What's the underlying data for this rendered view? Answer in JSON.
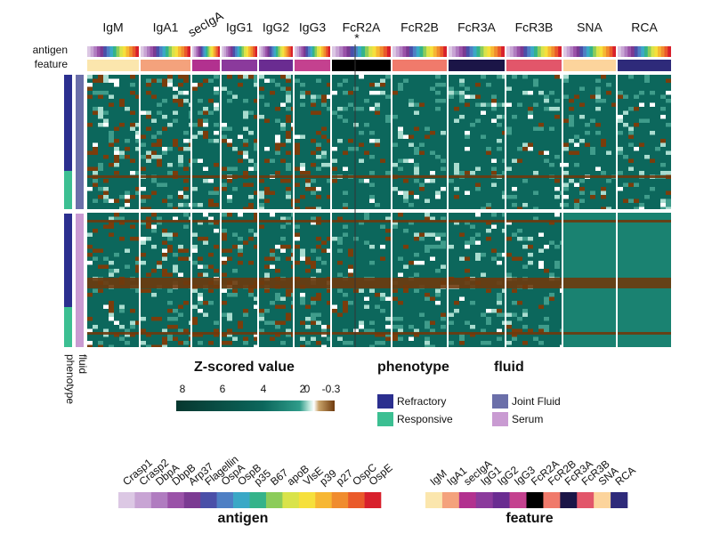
{
  "columns": [
    "IgM",
    "IgA1",
    "secIgA",
    "IgG1",
    "IgG2",
    "IgG3",
    "FcR2A",
    "FcR2B",
    "FcR3A",
    "FcR3B",
    "SNA",
    "RCA"
  ],
  "column_note": "*",
  "row_labels": [
    "antigen",
    "feature"
  ],
  "side_labels": [
    "fluid",
    "phenotype"
  ],
  "colorbar": {
    "title": "Z-scored value",
    "ticks": [
      8,
      6,
      4,
      2,
      0,
      -0.3
    ]
  },
  "phenotype_legend": {
    "title": "phenotype",
    "items": [
      {
        "label": "Refractory",
        "color": "#2b2f8f"
      },
      {
        "label": "Responsive",
        "color": "#3cbf92"
      }
    ]
  },
  "fluid_legend": {
    "title": "fluid",
    "items": [
      {
        "label": "Joint Fluid",
        "color": "#6b6fa9"
      },
      {
        "label": "Serum",
        "color": "#c99bd2"
      }
    ]
  },
  "antigen_legend": {
    "title": "antigen",
    "items": [
      {
        "label": "Crasp1",
        "color": "#dcc8e4"
      },
      {
        "label": "Crasp2",
        "color": "#c8a4d4"
      },
      {
        "label": "DbpA",
        "color": "#b07cc0"
      },
      {
        "label": "DbpB",
        "color": "#9a52a8"
      },
      {
        "label": "Arp37",
        "color": "#7b3a92"
      },
      {
        "label": "Flagellin",
        "color": "#4a4fa8"
      },
      {
        "label": "OspA",
        "color": "#4e7fc4"
      },
      {
        "label": "OspB",
        "color": "#3aa8c6"
      },
      {
        "label": "p35",
        "color": "#34b38a"
      },
      {
        "label": "B67",
        "color": "#8ccc5a"
      },
      {
        "label": "apoB",
        "color": "#d9e34a"
      },
      {
        "label": "VlsE",
        "color": "#f6e03c"
      },
      {
        "label": "p39",
        "color": "#f7b733"
      },
      {
        "label": "p27",
        "color": "#f08c2e"
      },
      {
        "label": "OspC",
        "color": "#ea5a2a"
      },
      {
        "label": "OspE",
        "color": "#d8202c"
      }
    ]
  },
  "feature_legend": {
    "title": "feature",
    "items": [
      {
        "label": "IgM",
        "color": "#fbe6ad"
      },
      {
        "label": "IgA1",
        "color": "#f4a27c"
      },
      {
        "label": "secIgA",
        "color": "#b2318f"
      },
      {
        "label": "IgG1",
        "color": "#8b3a9c"
      },
      {
        "label": "IgG2",
        "color": "#6a2c91"
      },
      {
        "label": "IgG3",
        "color": "#c4418f"
      },
      {
        "label": "FcR2A",
        "color": "#000000"
      },
      {
        "label": "FcR2B",
        "color": "#f07a6b"
      },
      {
        "label": "FcR3A",
        "color": "#1b1547"
      },
      {
        "label": "FcR3B",
        "color": "#e2566a"
      },
      {
        "label": "SNA",
        "color": "#fcd49c"
      },
      {
        "label": "RCA",
        "color": "#2e2a7a"
      }
    ]
  }
}
